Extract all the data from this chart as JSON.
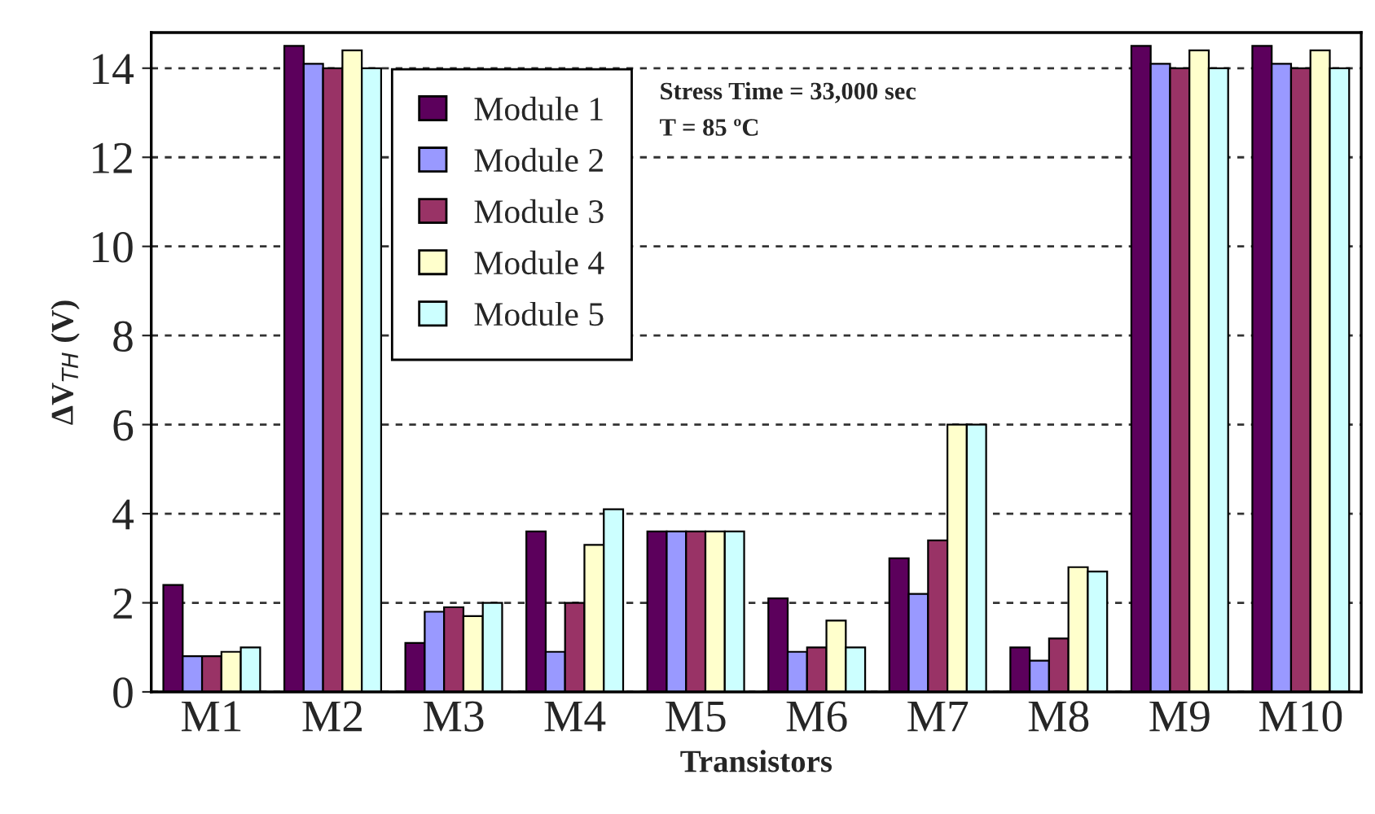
{
  "chart_data": {
    "type": "bar",
    "xlabel": "Transistors",
    "ylabel": "ΔV$_{TH}$ (V)",
    "categories": [
      "M1",
      "M2",
      "M3",
      "M4",
      "M5",
      "M6",
      "M7",
      "M8",
      "M9",
      "M10"
    ],
    "series": [
      {
        "name": "Module 1",
        "color": "#5c005c",
        "values": [
          2.4,
          14.5,
          1.1,
          3.6,
          3.6,
          2.1,
          3.0,
          1.0,
          14.5,
          14.5
        ]
      },
      {
        "name": "Module 2",
        "color": "#9999ff",
        "values": [
          0.8,
          14.1,
          1.8,
          0.9,
          3.6,
          0.9,
          2.2,
          0.7,
          14.1,
          14.1
        ]
      },
      {
        "name": "Module 3",
        "color": "#993366",
        "values": [
          0.8,
          14.0,
          1.9,
          2.0,
          3.6,
          1.0,
          3.4,
          1.2,
          14.0,
          14.0
        ]
      },
      {
        "name": "Module 4",
        "color": "#ffffcc",
        "values": [
          0.9,
          14.4,
          1.7,
          3.3,
          3.6,
          1.6,
          6.0,
          2.8,
          14.4,
          14.4
        ]
      },
      {
        "name": "Module 5",
        "color": "#ccffff",
        "values": [
          1.0,
          14.0,
          2.0,
          4.1,
          3.6,
          1.0,
          6.0,
          2.7,
          14.0,
          14.0
        ]
      }
    ],
    "ylim": [
      0,
      14.8
    ],
    "yticks": [
      0,
      2,
      4,
      6,
      8,
      10,
      12,
      14
    ],
    "grid": "y",
    "legend": "top left",
    "annotations": [
      "Stress Time = 33,000 sec",
      "T = 85 ºC"
    ]
  }
}
